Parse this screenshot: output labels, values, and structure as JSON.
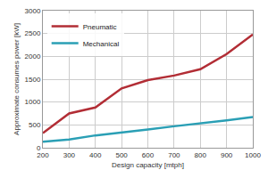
{
  "chart_data": {
    "type": "line",
    "x_label": "Design capacity [mtph]",
    "y_label": "Approximate consumes power [kW]",
    "x": [
      200,
      300,
      400,
      500,
      600,
      700,
      800,
      900,
      1000
    ],
    "series": [
      {
        "name": "Pneumatic",
        "color": "#b22d35",
        "values": [
          320,
          750,
          880,
          1300,
          1480,
          1580,
          1720,
          2050,
          2480
        ]
      },
      {
        "name": "Mechanical",
        "color": "#2a9fb5",
        "values": [
          130,
          180,
          270,
          330,
          400,
          470,
          530,
          600,
          670
        ]
      }
    ],
    "xlim": [
      200,
      1000
    ],
    "xticks": [
      200,
      300,
      400,
      500,
      600,
      700,
      800,
      900,
      1000
    ],
    "ylim": [
      0,
      3000
    ],
    "yticks": [
      0,
      500,
      1000,
      1500,
      2000,
      2500,
      3000
    ],
    "grid": true,
    "legend": "upper left"
  }
}
